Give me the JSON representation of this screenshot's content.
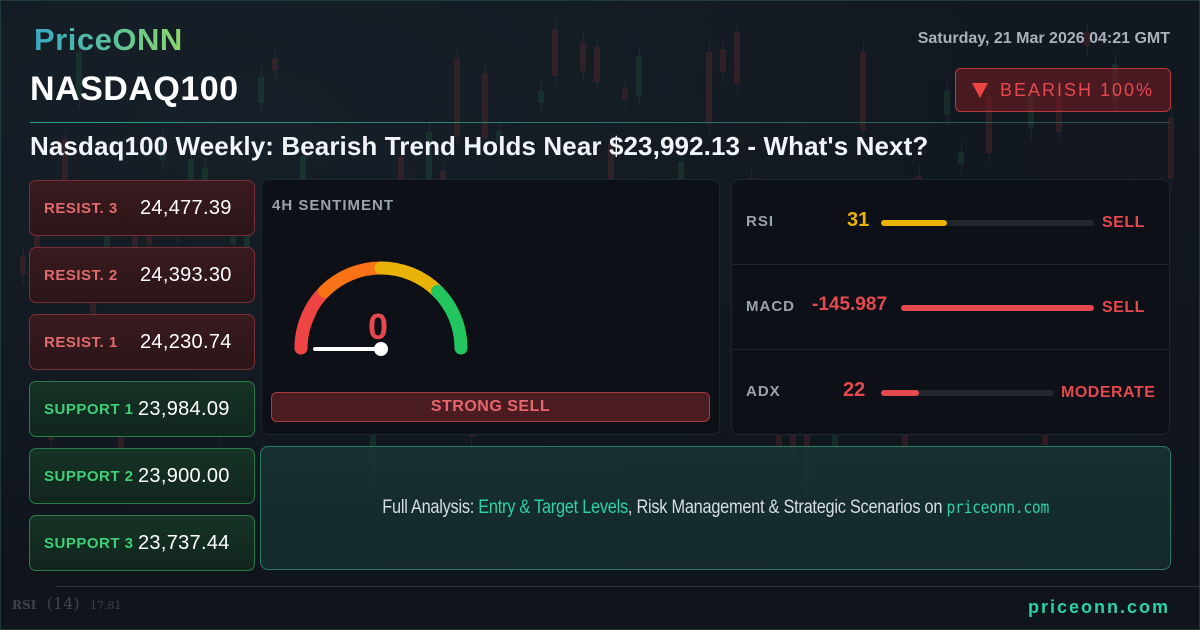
{
  "brand": {
    "logo": "PriceONN",
    "footer_site": "priceonn.com"
  },
  "header": {
    "symbol": "NASDAQ100",
    "datetime": "Saturday, 21 Mar 2026 04:21 GMT",
    "trend_badge": {
      "icon": "triangle-down-icon",
      "label": "BEARISH 100%",
      "color": "#e5484d"
    },
    "headline": "Nasdaq100 Weekly: Bearish Trend Holds Near $23,992.13 - What's Next?"
  },
  "levels": [
    {
      "type": "resistance",
      "label": "RESIST. 3",
      "value": "24,477.39"
    },
    {
      "type": "resistance",
      "label": "RESIST. 2",
      "value": "24,393.30"
    },
    {
      "type": "resistance",
      "label": "RESIST. 1",
      "value": "24,230.74"
    },
    {
      "type": "support",
      "label": "SUPPORT 1",
      "value": "23,984.09"
    },
    {
      "type": "support",
      "label": "SUPPORT 2",
      "value": "23,900.00"
    },
    {
      "type": "support",
      "label": "SUPPORT 3",
      "value": "23,737.44"
    }
  ],
  "sentiment": {
    "title": "4H SENTIMENT",
    "value": "0",
    "verdict": "STRONG SELL",
    "gauge_colors": [
      "#ef4444",
      "#f97316",
      "#eab308",
      "#22c55e"
    ]
  },
  "indicators": [
    {
      "name": "RSI",
      "value": "31",
      "value_color": "#eab308",
      "bar_pct": 31,
      "bar_color": "#eab308",
      "signal": "SELL"
    },
    {
      "name": "MACD",
      "value": "-145.987",
      "value_color": "#e5484d",
      "bar_pct": 100,
      "bar_color": "#e5484d",
      "signal": "SELL"
    },
    {
      "name": "ADX",
      "value": "22",
      "value_color": "#e5484d",
      "bar_pct": 22,
      "bar_color": "#e5484d",
      "signal": "MODERATE"
    }
  ],
  "cta": {
    "prefix": "Full Analysis: ",
    "highlight": "Entry & Target Levels",
    "middle": ", Risk Management & Strategic Scenarios on ",
    "site": "priceonn.com"
  },
  "background_chart": {
    "indicator_label": "RSI",
    "indicator_param": "(14)",
    "indicator_value": "17.81"
  }
}
